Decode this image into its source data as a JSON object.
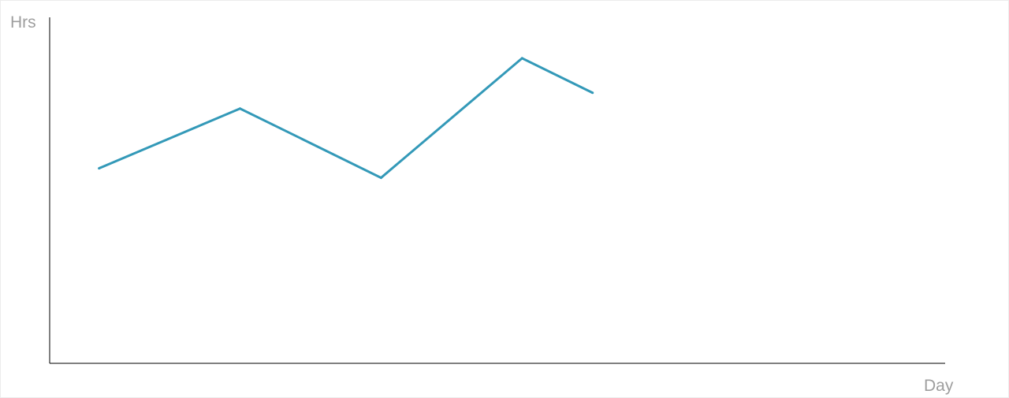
{
  "chart_data": {
    "type": "line",
    "title": "",
    "xlabel": "Day",
    "ylabel": "Hrs",
    "x": [
      1,
      2,
      3,
      4,
      4.5
    ],
    "series": [
      {
        "name": "",
        "values": [
          6.2,
          8.1,
          5.9,
          9.7,
          8.6
        ]
      }
    ],
    "xlim": [
      0.65,
      7
    ],
    "ylim": [
      0,
      11
    ],
    "grid": false,
    "legend": "none",
    "colors": {
      "line": "#3399b8",
      "axis": "#000000",
      "label": "#9e9e9e"
    }
  }
}
